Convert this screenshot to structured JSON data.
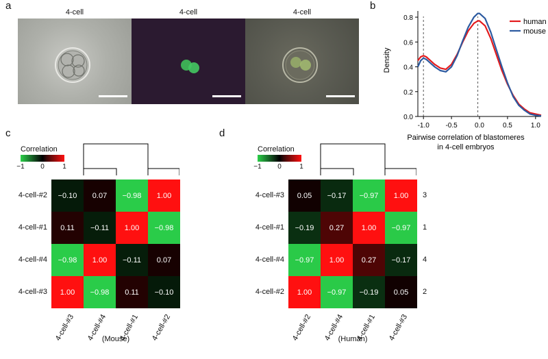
{
  "panel_labels": {
    "a": "a",
    "b": "b",
    "c": "c",
    "d": "d"
  },
  "panel_a": {
    "titles": [
      "4-cell",
      "4-cell",
      "4-cell"
    ]
  },
  "chart_data": [
    {
      "type": "line",
      "panel": "b",
      "ylabel": "Density",
      "xlabel_line1": "Pairwise correlation of blastomeres",
      "xlabel_line2": "in 4-cell embryos",
      "xlim": [
        -1.1,
        1.1
      ],
      "ylim": [
        0,
        0.85
      ],
      "x_ticks": [
        "-1.0",
        "-0.5",
        "0.0",
        "0.5",
        "1.0"
      ],
      "y_ticks": [
        "0.0",
        "0.2",
        "0.4",
        "0.6",
        "0.8"
      ],
      "legend": "top-right",
      "colors": {
        "human": "#e31a1c",
        "mouse": "#2c5aa0"
      },
      "series": [
        {
          "name": "human",
          "x": [
            -1.1,
            -1.05,
            -1.0,
            -0.95,
            -0.9,
            -0.8,
            -0.7,
            -0.6,
            -0.5,
            -0.4,
            -0.3,
            -0.2,
            -0.1,
            -0.03,
            0.0,
            0.1,
            0.2,
            0.3,
            0.4,
            0.5,
            0.6,
            0.7,
            0.8,
            0.9,
            1.0,
            1.1
          ],
          "y": [
            0.45,
            0.48,
            0.49,
            0.48,
            0.46,
            0.42,
            0.39,
            0.38,
            0.42,
            0.5,
            0.6,
            0.69,
            0.75,
            0.77,
            0.77,
            0.73,
            0.63,
            0.5,
            0.37,
            0.26,
            0.17,
            0.1,
            0.06,
            0.03,
            0.02,
            0.01
          ]
        },
        {
          "name": "mouse",
          "x": [
            -1.1,
            -1.05,
            -1.0,
            -0.95,
            -0.9,
            -0.8,
            -0.7,
            -0.6,
            -0.5,
            -0.4,
            -0.3,
            -0.2,
            -0.1,
            -0.03,
            0.0,
            0.1,
            0.2,
            0.3,
            0.4,
            0.5,
            0.6,
            0.7,
            0.8,
            0.9,
            1.0,
            1.1
          ],
          "y": [
            0.4,
            0.45,
            0.47,
            0.46,
            0.44,
            0.4,
            0.37,
            0.36,
            0.4,
            0.49,
            0.61,
            0.72,
            0.8,
            0.83,
            0.83,
            0.79,
            0.68,
            0.54,
            0.4,
            0.27,
            0.16,
            0.09,
            0.05,
            0.02,
            0.01,
            0.005
          ]
        }
      ],
      "vlines": [
        -1.0,
        -0.03
      ]
    },
    {
      "type": "heatmap",
      "panel": "c",
      "colorbar_title": "Correlation",
      "colorbar_ticks": [
        "−1",
        "0",
        "1"
      ],
      "rows": [
        "4-cell-#2",
        "4-cell-#1",
        "4-cell-#4",
        "4-cell-#3"
      ],
      "cols": [
        "4-cell-#3",
        "4-cell-#4",
        "4-cell-#1",
        "4-cell-#2"
      ],
      "values": [
        [
          "−0.10",
          "0.07",
          "−0.98",
          "1.00"
        ],
        [
          "0.11",
          "−0.11",
          "1.00",
          "−0.98"
        ],
        [
          "−0.98",
          "1.00",
          "−0.11",
          "0.07"
        ],
        [
          "1.00",
          "−0.98",
          "0.11",
          "−0.10"
        ]
      ],
      "numeric": [
        [
          -0.1,
          0.07,
          -0.98,
          1.0
        ],
        [
          0.11,
          -0.11,
          1.0,
          -0.98
        ],
        [
          -0.98,
          1.0,
          -0.11,
          0.07
        ],
        [
          1.0,
          -0.98,
          0.11,
          -0.1
        ]
      ],
      "caption": "(Mouse)"
    },
    {
      "type": "heatmap",
      "panel": "d",
      "colorbar_title": "Correlation",
      "colorbar_ticks": [
        "−1",
        "0",
        "1"
      ],
      "rows": [
        "4-cell-#3",
        "4-cell-#1",
        "4-cell-#4",
        "4-cell-#2"
      ],
      "row_right_labels": [
        "3",
        "1",
        "4",
        "2"
      ],
      "cols": [
        "4-cell-#2",
        "4-cell-#4",
        "4-cell-#1",
        "4-cell-#3"
      ],
      "values": [
        [
          "0.05",
          "−0.17",
          "−0.97",
          "1.00"
        ],
        [
          "−0.19",
          "0.27",
          "1.00",
          "−0.97"
        ],
        [
          "−0.97",
          "1.00",
          "0.27",
          "−0.17"
        ],
        [
          "1.00",
          "−0.97",
          "−0.19",
          "0.05"
        ]
      ],
      "numeric": [
        [
          0.05,
          -0.17,
          -0.97,
          1.0
        ],
        [
          -0.19,
          0.27,
          1.0,
          -0.97
        ],
        [
          -0.97,
          1.0,
          0.27,
          -0.17
        ],
        [
          1.0,
          -0.97,
          -0.19,
          0.05
        ]
      ],
      "caption": "(Human)"
    }
  ]
}
